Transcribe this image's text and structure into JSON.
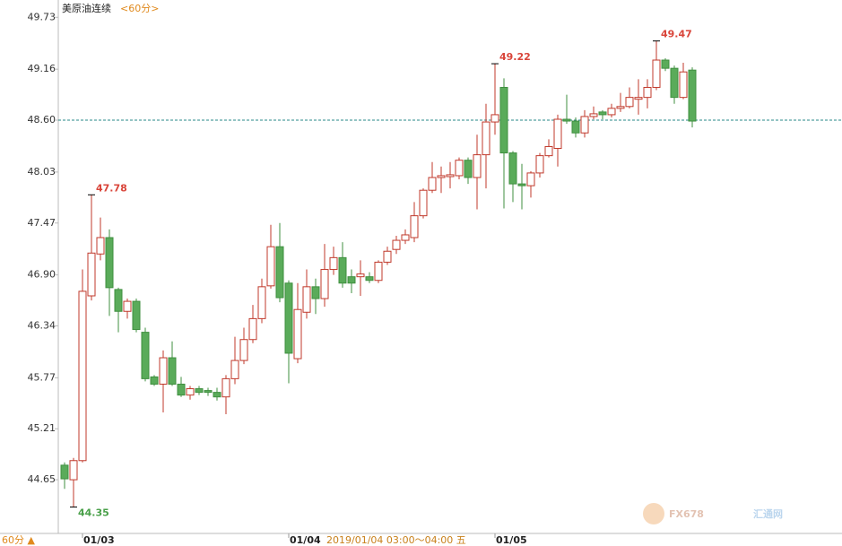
{
  "chart_data": {
    "type": "candlestick",
    "title": "美原油连续",
    "period": "<60分>",
    "categories": [
      null,
      null,
      "01/03",
      null,
      null,
      null,
      null,
      null,
      null,
      null,
      null,
      null,
      null,
      null,
      null,
      null,
      null,
      null,
      null,
      null,
      null,
      null,
      null,
      null,
      null,
      "01/04",
      null,
      null,
      null,
      null,
      null,
      null,
      null,
      null,
      null,
      null,
      null,
      null,
      null,
      null,
      null,
      null,
      null,
      null,
      null,
      null,
      null,
      null,
      "01/05",
      null,
      null,
      null,
      null,
      null,
      null,
      null,
      null,
      null,
      null,
      null,
      null,
      null,
      null,
      null,
      null,
      null,
      null,
      null,
      null,
      null,
      null
    ],
    "open": [
      44.81,
      44.65,
      44.86,
      46.67,
      47.13,
      47.31,
      46.74,
      46.5,
      46.61,
      46.27,
      45.78,
      45.7,
      45.99,
      45.7,
      45.58,
      45.65,
      45.63,
      45.61,
      45.56,
      45.76,
      45.96,
      46.19,
      46.42,
      46.78,
      47.21,
      46.81,
      45.98,
      46.49,
      46.77,
      46.64,
      46.96,
      47.09,
      46.88,
      46.88,
      46.88,
      46.84,
      47.04,
      47.18,
      47.28,
      47.31,
      47.55,
      47.83,
      47.97,
      47.98,
      47.99,
      48.16,
      47.97,
      48.22,
      48.58,
      48.96,
      48.24,
      47.9,
      47.88,
      48.02,
      48.21,
      48.29,
      48.61,
      48.59,
      48.46,
      48.64,
      48.69,
      48.66,
      48.73,
      48.75,
      48.83,
      48.85,
      48.96,
      49.26,
      49.17,
      48.85,
      49.15
    ],
    "high": [
      44.84,
      44.89,
      46.96,
      47.78,
      47.53,
      47.4,
      46.76,
      46.64,
      46.64,
      46.32,
      45.8,
      46.07,
      46.17,
      45.78,
      45.68,
      45.68,
      45.66,
      45.66,
      45.8,
      46.22,
      46.32,
      46.57,
      46.86,
      47.45,
      47.47,
      46.84,
      46.81,
      46.96,
      46.86,
      47.24,
      47.21,
      47.26,
      46.96,
      47.06,
      46.93,
      47.06,
      47.21,
      47.33,
      47.4,
      47.7,
      47.85,
      48.14,
      48.09,
      48.14,
      48.19,
      48.19,
      48.44,
      48.78,
      49.22,
      49.06,
      48.26,
      48.12,
      48.04,
      48.24,
      48.39,
      48.66,
      48.88,
      48.63,
      48.71,
      48.75,
      48.71,
      48.78,
      48.9,
      48.96,
      49.05,
      49.05,
      49.47,
      49.28,
      49.2,
      49.23,
      49.18
    ],
    "low": [
      44.55,
      44.35,
      44.84,
      46.62,
      47.06,
      46.45,
      46.27,
      46.42,
      46.27,
      45.73,
      45.68,
      45.39,
      45.68,
      45.56,
      45.53,
      45.58,
      45.57,
      45.52,
      45.37,
      45.7,
      45.92,
      46.15,
      46.37,
      46.75,
      46.6,
      45.71,
      45.93,
      46.42,
      46.47,
      46.55,
      46.9,
      46.76,
      46.7,
      46.67,
      46.81,
      46.81,
      47.01,
      47.13,
      47.24,
      47.26,
      47.52,
      47.8,
      47.8,
      47.85,
      47.95,
      47.9,
      47.62,
      47.85,
      48.44,
      47.63,
      47.7,
      47.62,
      47.75,
      47.97,
      48.19,
      48.09,
      48.56,
      48.41,
      48.41,
      48.61,
      48.61,
      48.63,
      48.69,
      48.73,
      48.66,
      48.73,
      48.93,
      49.14,
      48.78,
      48.83,
      48.52
    ],
    "close": [
      44.66,
      44.86,
      46.72,
      47.14,
      47.31,
      46.76,
      46.5,
      46.61,
      46.3,
      45.76,
      45.7,
      45.99,
      45.7,
      45.58,
      45.65,
      45.61,
      45.61,
      45.56,
      45.76,
      45.96,
      46.19,
      46.42,
      46.77,
      47.21,
      46.65,
      46.04,
      46.52,
      46.77,
      46.64,
      46.96,
      47.09,
      46.81,
      46.81,
      46.91,
      46.84,
      47.04,
      47.16,
      47.28,
      47.34,
      47.55,
      47.83,
      47.97,
      47.99,
      48.0,
      48.16,
      47.97,
      48.22,
      48.58,
      48.66,
      48.24,
      47.9,
      47.88,
      48.02,
      48.21,
      48.31,
      48.61,
      48.59,
      48.46,
      48.64,
      48.67,
      48.66,
      48.73,
      48.75,
      48.85,
      48.85,
      48.96,
      49.26,
      49.17,
      48.85,
      49.13,
      48.59
    ],
    "up_color": "#c0392b",
    "down_color": "#5aab5a",
    "down_edge": "#3f8f3f",
    "ylim": [
      44.06,
      49.92
    ],
    "yticks": [
      {
        "value": 44.65,
        "label": "44.65"
      },
      {
        "value": 45.21,
        "label": "45.21"
      },
      {
        "value": 45.77,
        "label": "45.77"
      },
      {
        "value": 46.34,
        "label": "46.34"
      },
      {
        "value": 46.9,
        "label": "46.90"
      },
      {
        "value": 47.47,
        "label": "47.47"
      },
      {
        "value": 48.03,
        "label": "48.03"
      },
      {
        "value": 48.6,
        "label": "48.60"
      },
      {
        "value": 49.16,
        "label": "49.16"
      },
      {
        "value": 49.73,
        "label": "49.73"
      }
    ],
    "last_price": {
      "value": 48.6,
      "label": "48.60"
    },
    "annotations": [
      {
        "value": 47.78,
        "label": "47.78",
        "kind": "high"
      },
      {
        "value": 49.22,
        "label": "49.22",
        "kind": "high"
      },
      {
        "value": 49.47,
        "label": "49.47",
        "kind": "high"
      },
      {
        "value": 44.35,
        "label": "44.35",
        "kind": "low"
      }
    ],
    "tooltip": "2019/01/04 03:00～04:00 五",
    "period_button": "60分 ▲",
    "watermark": {
      "brand": "FX678",
      "name": "汇通网"
    }
  }
}
